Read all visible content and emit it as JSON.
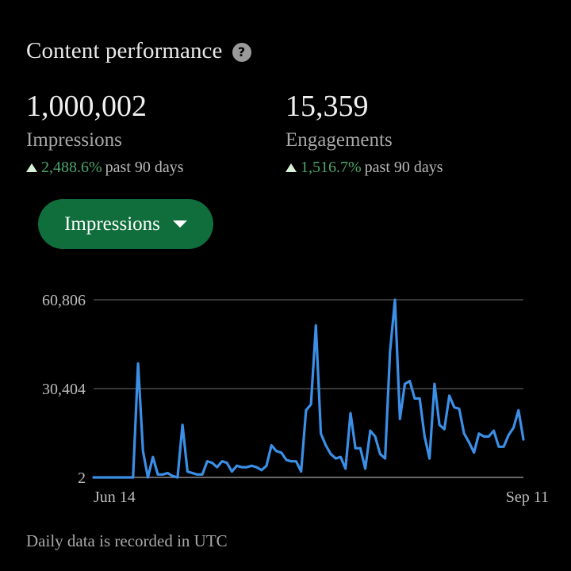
{
  "header": {
    "title": "Content performance",
    "help_icon": "question-circle-icon"
  },
  "stats": [
    {
      "value": "1,000,002",
      "label": "Impressions",
      "change": "2,488.6%",
      "period": "past 90 days",
      "trend_icon": "triangle-up-icon"
    },
    {
      "value": "15,359",
      "label": "Engagements",
      "change": "1,516.7%",
      "period": "past 90 days",
      "trend_icon": "triangle-up-icon"
    }
  ],
  "metric_selector": {
    "selected": "Impressions",
    "icon": "caret-down-icon"
  },
  "colors": {
    "background": "#000000",
    "accent_green": "#0f6e3c",
    "positive_text": "#4fa56b",
    "line": "#3b8fe6",
    "gridline": "#6e6e6e"
  },
  "chart_data": {
    "type": "line",
    "y_tick_labels": [
      "60,806",
      "30,404",
      "2"
    ],
    "y_ticks": [
      60806,
      30404,
      2
    ],
    "ylim": [
      2,
      60806
    ],
    "x_tick_labels": [
      "Jun 14",
      "Sep 11"
    ],
    "grid": true,
    "series": [
      {
        "values": [
          2,
          2,
          2,
          2,
          2,
          2,
          2,
          2,
          2,
          39000,
          9000,
          2,
          7000,
          1000,
          1000,
          1500,
          500,
          0,
          18000,
          2000,
          1500,
          1000,
          1000,
          5500,
          5000,
          3500,
          5500,
          5000,
          2000,
          4000,
          3500,
          3500,
          4000,
          3500,
          2500,
          4000,
          11000,
          9000,
          8500,
          6000,
          5500,
          5500,
          2000,
          23000,
          25000,
          52000,
          15000,
          11000,
          8000,
          6500,
          7000,
          3000,
          22000,
          10000,
          10000,
          3000,
          16000,
          14000,
          8000,
          6500,
          43000,
          60806,
          20000,
          32000,
          33000,
          27000,
          27000,
          14000,
          6500,
          32000,
          18000,
          16500,
          28000,
          24000,
          23500,
          15000,
          12000,
          8500,
          15000,
          14000,
          14000,
          16000,
          10500,
          10500,
          14500,
          17000,
          23000,
          13000
        ]
      }
    ]
  },
  "footer": {
    "note": "Daily data is recorded in UTC"
  }
}
